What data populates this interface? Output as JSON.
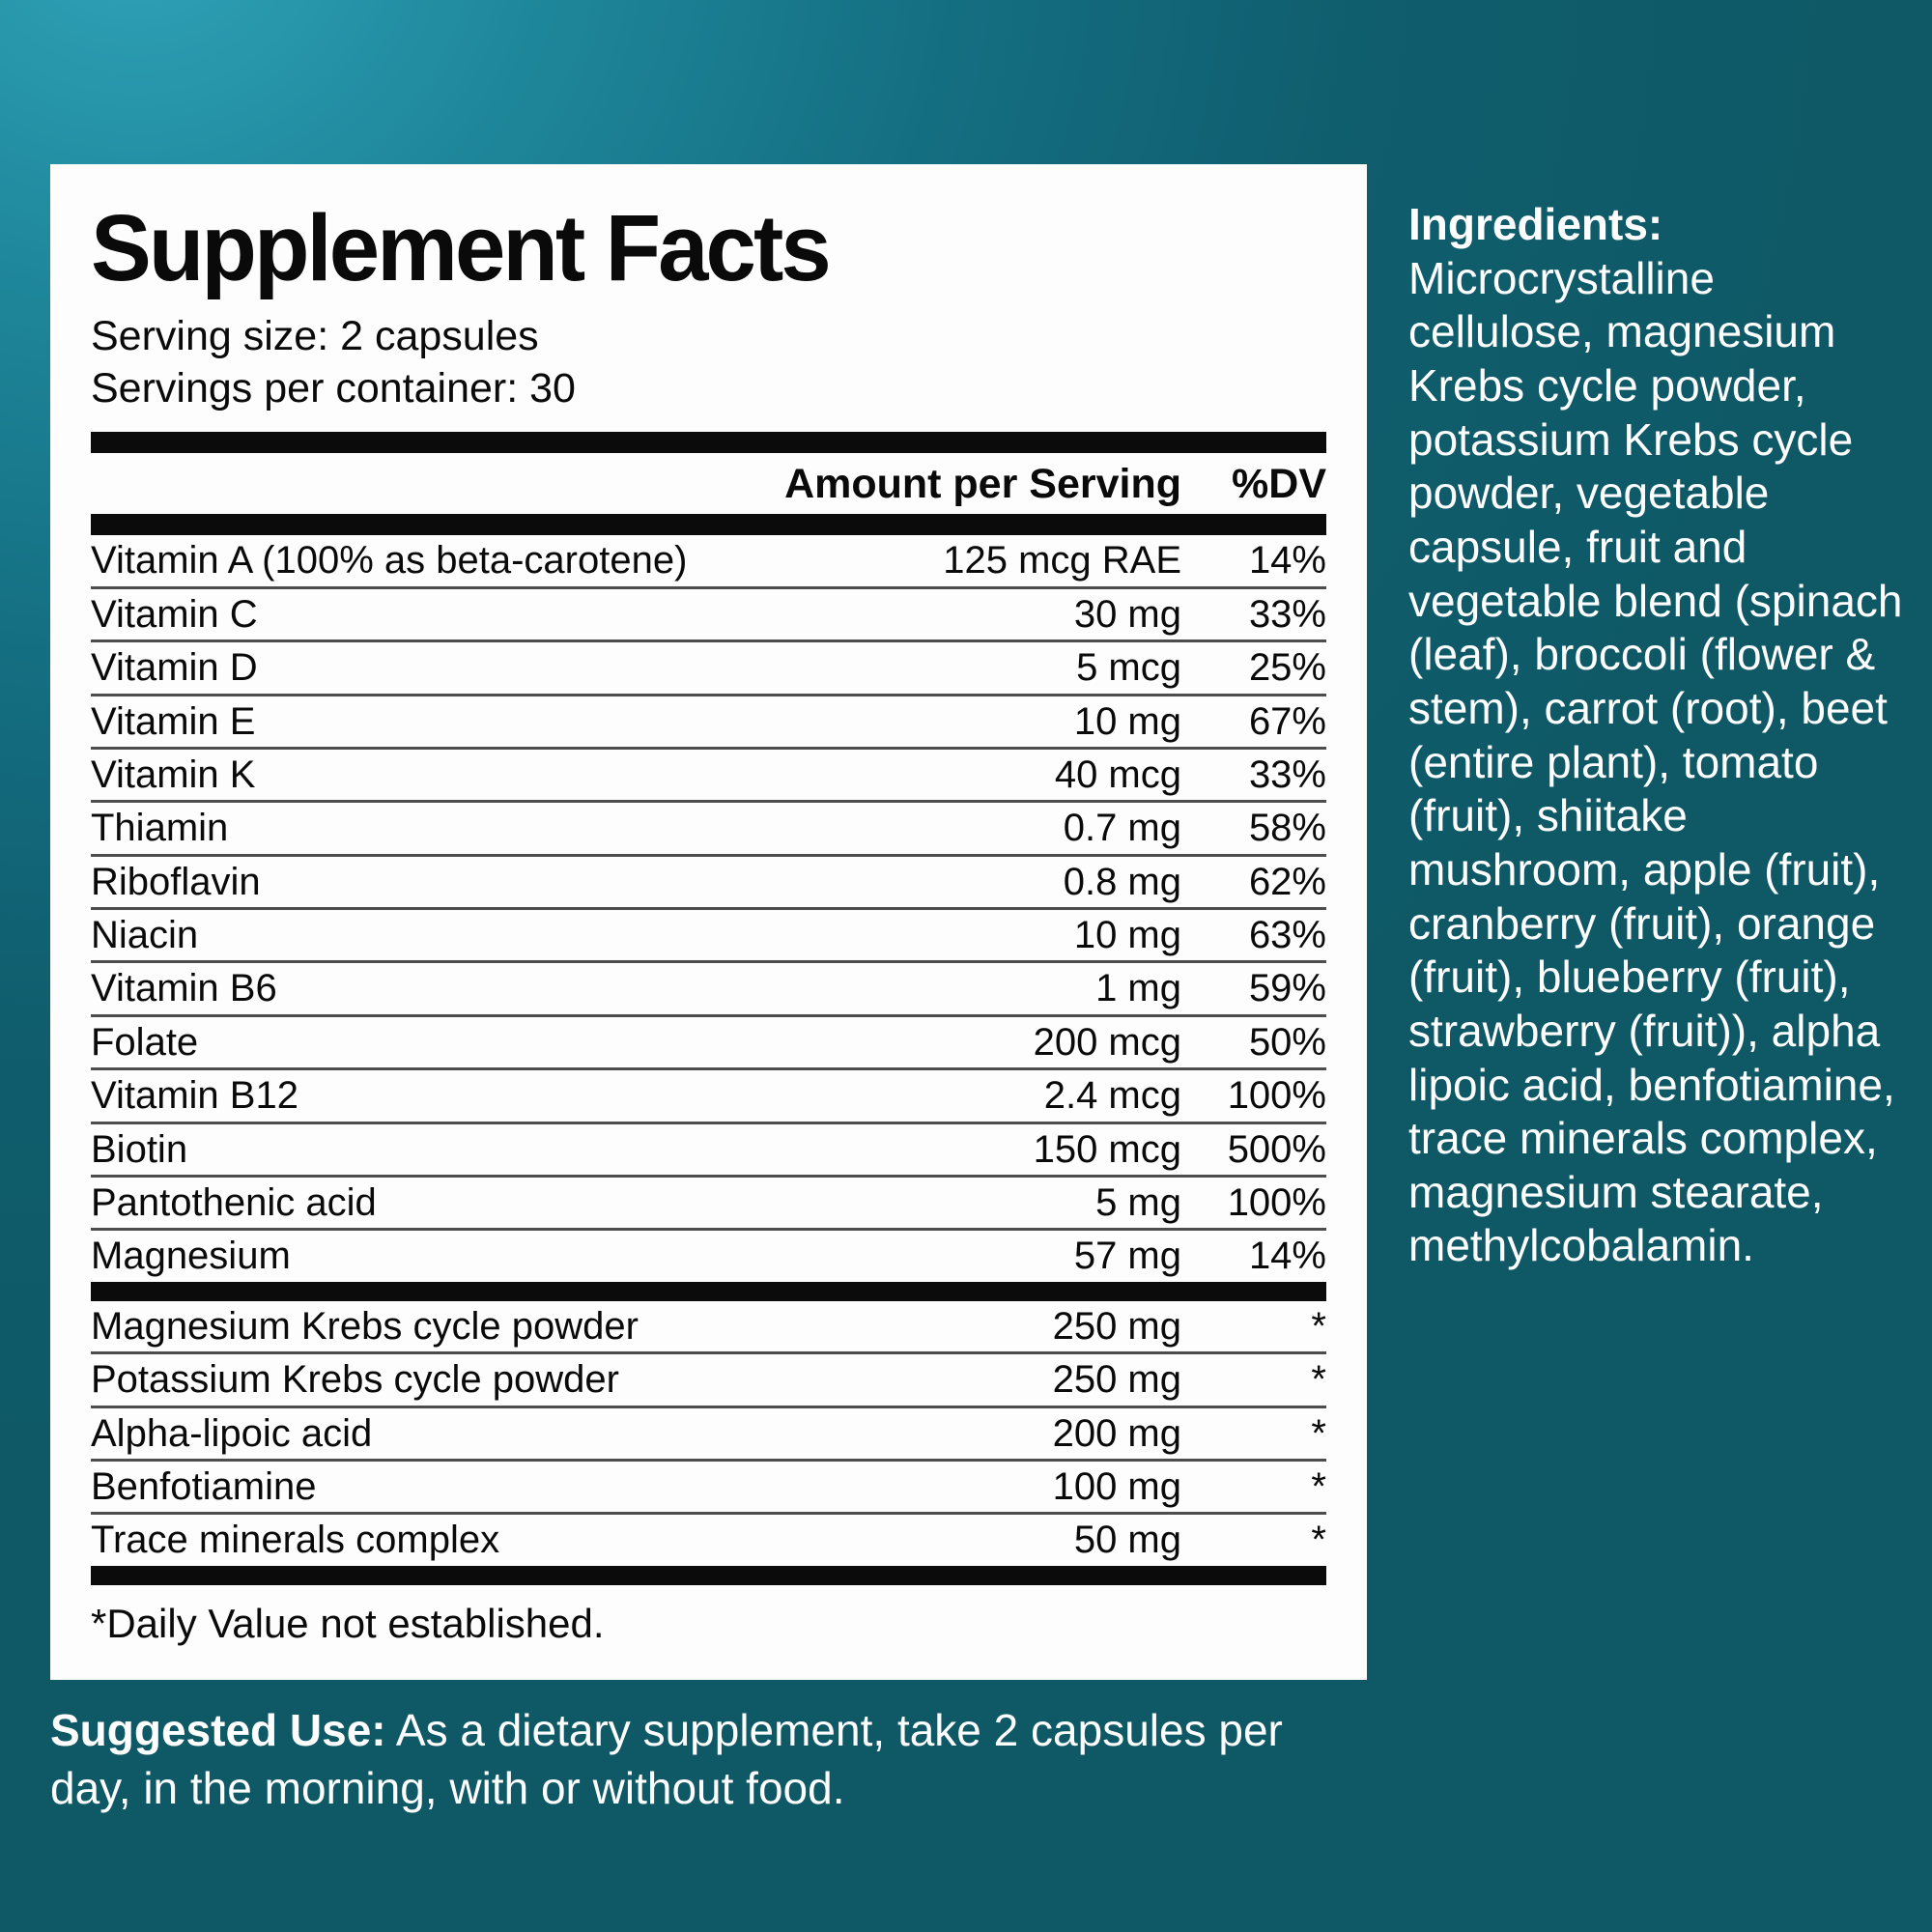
{
  "background": {
    "teal_light": "#2FA3B9",
    "teal_dark": "#0F5865"
  },
  "panel": {
    "title": "Supplement Facts",
    "serving_size": "Serving size: 2 capsules",
    "servings_per_container": "Servings per container: 30",
    "table": {
      "headers": {
        "amount": "Amount per Serving",
        "dv": "%DV"
      },
      "rows": [
        {
          "name": "Vitamin A (100% as beta-carotene)",
          "amount": "125 mcg RAE",
          "dv": "14%"
        },
        {
          "name": "Vitamin C",
          "amount": "30 mg",
          "dv": "33%"
        },
        {
          "name": "Vitamin D",
          "amount": "5 mcg",
          "dv": "25%"
        },
        {
          "name": "Vitamin E",
          "amount": "10 mg",
          "dv": "67%"
        },
        {
          "name": "Vitamin K",
          "amount": "40 mcg",
          "dv": "33%"
        },
        {
          "name": "Thiamin",
          "amount": "0.7 mg",
          "dv": "58%"
        },
        {
          "name": "Riboflavin",
          "amount": "0.8 mg",
          "dv": "62%"
        },
        {
          "name": "Niacin",
          "amount": "10 mg",
          "dv": "63%"
        },
        {
          "name": "Vitamin B6",
          "amount": "1 mg",
          "dv": "59%"
        },
        {
          "name": "Folate",
          "amount": "200 mcg",
          "dv": "50%"
        },
        {
          "name": "Vitamin B12",
          "amount": "2.4 mcg",
          "dv": "100%"
        },
        {
          "name": "Biotin",
          "amount": "150 mcg",
          "dv": "500%"
        },
        {
          "name": "Pantothenic acid",
          "amount": "5 mg",
          "dv": "100%"
        },
        {
          "name": "Magnesium",
          "amount": "57 mg",
          "dv": "14%"
        }
      ],
      "star_rows": [
        {
          "name": "Magnesium Krebs cycle powder",
          "amount": "250 mg",
          "dv": "*"
        },
        {
          "name": "Potassium Krebs cycle powder",
          "amount": "250 mg",
          "dv": "*"
        },
        {
          "name": "Alpha-lipoic acid",
          "amount": "200 mg",
          "dv": "*"
        },
        {
          "name": "Benfotiamine",
          "amount": "100 mg",
          "dv": "*"
        },
        {
          "name": "Trace minerals complex",
          "amount": "50 mg",
          "dv": "*"
        }
      ],
      "footnote": "*Daily Value not established."
    }
  },
  "ingredients": {
    "heading": "Ingredients:",
    "text": "Microcrystalline cellulose, magnesium Krebs cycle powder, potassium Krebs cycle powder, vegetable capsule, fruit and vegetable blend (spinach (leaf), broccoli (flower & stem), carrot (root), beet (entire plant), tomato (fruit), shiitake mushroom, apple (fruit), cranberry (fruit), orange (fruit), blueberry (fruit), strawberry (fruit)), alpha lipoic acid, benfotiamine, trace minerals complex, magnesium stearate, methylcobalamin."
  },
  "suggested_use": {
    "label": "Suggested Use:",
    "text": "As a dietary supplement, take 2 capsules per day, in the morning, with or without food."
  }
}
